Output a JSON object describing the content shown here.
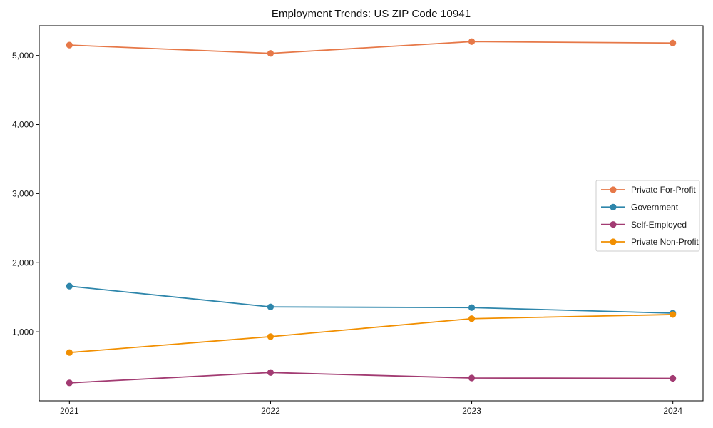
{
  "chart_data": {
    "type": "line",
    "title": "Employment Trends: US ZIP Code 10941",
    "xlabel": "",
    "ylabel": "",
    "x": [
      2021,
      2022,
      2023,
      2024
    ],
    "x_tick_labels": [
      "2021",
      "2022",
      "2023",
      "2024"
    ],
    "y_ticks": [
      {
        "value": 1000,
        "label": "1,000"
      },
      {
        "value": 2000,
        "label": "2,000"
      },
      {
        "value": 3000,
        "label": "3,000"
      },
      {
        "value": 4000,
        "label": "4,000"
      },
      {
        "value": 5000,
        "label": "5,000"
      }
    ],
    "xlim": [
      2020.85,
      2024.15
    ],
    "ylim": [
      0,
      5430
    ],
    "grid": false,
    "background": "#ffffff",
    "axis_color": "#000000",
    "text_color": "#1a1a1a",
    "marker": "circle",
    "legend": {
      "position": "center-right",
      "background": "#ffffff",
      "border_color": "#cccccc"
    },
    "series": [
      {
        "name": "Private For-Profit",
        "color": "#E67848",
        "values": [
          5150,
          5030,
          5200,
          5180
        ]
      },
      {
        "name": "Government",
        "color": "#2E86AB",
        "values": [
          1660,
          1360,
          1350,
          1270
        ]
      },
      {
        "name": "Self-Employed",
        "color": "#A23B72",
        "values": [
          260,
          410,
          330,
          325
        ]
      },
      {
        "name": "Private Non-Profit",
        "color": "#F18F01",
        "values": [
          700,
          930,
          1190,
          1250
        ]
      }
    ]
  }
}
